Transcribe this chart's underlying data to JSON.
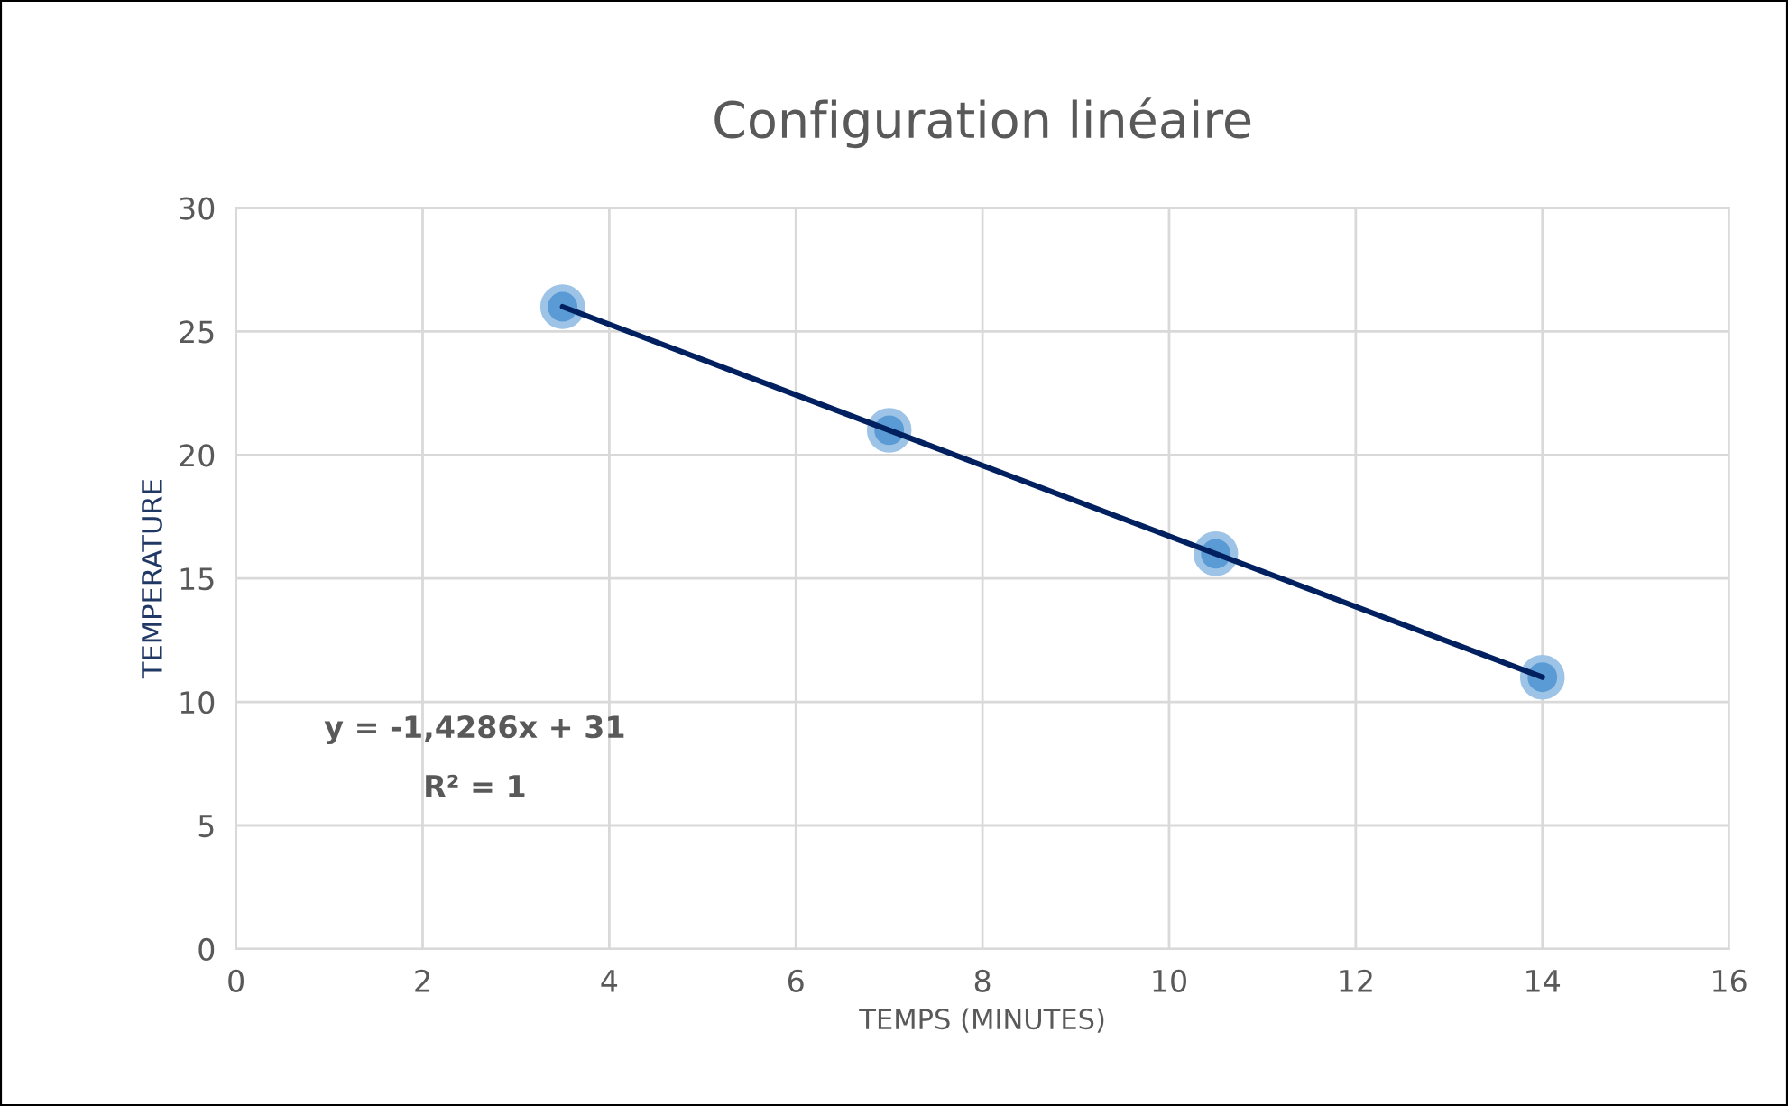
{
  "chart_data": {
    "type": "scatter",
    "title": "Configuration linéaire",
    "xlabel": "TEMPS (MINUTES)",
    "ylabel": "TEMPERATURE",
    "annotations": [
      "y = -1,4286x + 31",
      "R² = 1"
    ],
    "series": [
      {
        "color": "#5b9bd5",
        "x": [
          3.5,
          7,
          10.5,
          14
        ],
        "values": [
          26,
          21,
          16,
          11
        ],
        "marker": "circle"
      },
      {
        "type": "line",
        "color": "#002060",
        "x": [
          3.5,
          14
        ],
        "values": [
          26,
          11
        ],
        "marker": "none",
        "line_style": "solid"
      }
    ],
    "xlim": [
      0,
      16
    ],
    "xticks": [
      0,
      2,
      4,
      6,
      8,
      10,
      12,
      14,
      16
    ],
    "ylim": [
      0,
      30
    ],
    "yticks": [
      0,
      5,
      10,
      15,
      20,
      25,
      30
    ],
    "grid": true,
    "legend": false
  }
}
